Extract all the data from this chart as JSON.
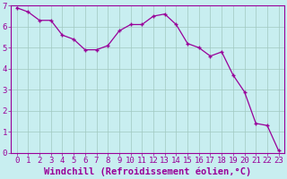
{
  "x": [
    0,
    1,
    2,
    3,
    4,
    5,
    6,
    7,
    8,
    9,
    10,
    11,
    12,
    13,
    14,
    15,
    16,
    17,
    18,
    19,
    20,
    21,
    22,
    23
  ],
  "y": [
    6.9,
    6.7,
    6.3,
    6.3,
    5.6,
    5.4,
    4.9,
    4.9,
    5.1,
    5.8,
    6.1,
    6.1,
    6.5,
    6.6,
    6.1,
    5.2,
    5.0,
    4.6,
    4.8,
    3.7,
    2.9,
    1.4,
    1.3,
    0.1
  ],
  "line_color": "#990099",
  "marker": "+",
  "bg_color": "#c8eef0",
  "grid_color": "#a0c8c0",
  "xlabel": "Windchill (Refroidissement éolien,°C)",
  "ylabel": "",
  "xlim": [
    -0.5,
    23.5
  ],
  "ylim": [
    0,
    7
  ],
  "yticks": [
    0,
    1,
    2,
    3,
    4,
    5,
    6,
    7
  ],
  "xticks": [
    0,
    1,
    2,
    3,
    4,
    5,
    6,
    7,
    8,
    9,
    10,
    11,
    12,
    13,
    14,
    15,
    16,
    17,
    18,
    19,
    20,
    21,
    22,
    23
  ],
  "font_color": "#990099",
  "font_size": 6.5,
  "xlabel_fontsize": 7.5
}
